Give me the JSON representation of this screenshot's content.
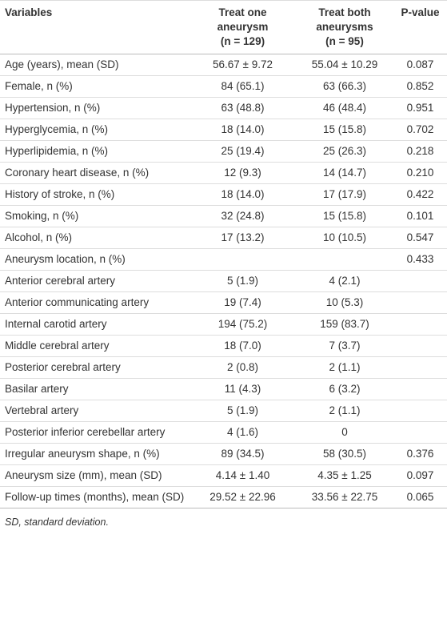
{
  "table": {
    "header": [
      [
        "Variables"
      ],
      [
        "Treat one",
        "aneurysm",
        "(n = 129)"
      ],
      [
        "Treat both",
        "aneurysms",
        "(n = 95)"
      ],
      [
        "P-value"
      ]
    ],
    "rows": [
      [
        "Age (years), mean (SD)",
        "56.67 ± 9.72",
        "55.04 ± 10.29",
        "0.087"
      ],
      [
        "Female, n (%)",
        "84 (65.1)",
        "63 (66.3)",
        "0.852"
      ],
      [
        "Hypertension, n (%)",
        "63 (48.8)",
        "46 (48.4)",
        "0.951"
      ],
      [
        "Hyperglycemia, n (%)",
        "18 (14.0)",
        "15 (15.8)",
        "0.702"
      ],
      [
        "Hyperlipidemia, n (%)",
        "25 (19.4)",
        "25 (26.3)",
        "0.218"
      ],
      [
        "Coronary heart disease, n (%)",
        "12 (9.3)",
        "14 (14.7)",
        "0.210"
      ],
      [
        "History of stroke, n (%)",
        "18 (14.0)",
        "17 (17.9)",
        "0.422"
      ],
      [
        "Smoking, n (%)",
        "32 (24.8)",
        "15 (15.8)",
        "0.101"
      ],
      [
        "Alcohol, n (%)",
        "17 (13.2)",
        "10 (10.5)",
        "0.547"
      ],
      [
        "Aneurysm location, n (%)",
        null,
        null,
        "0.433"
      ],
      [
        "Anterior cerebral artery",
        "5 (1.9)",
        "4 (2.1)",
        null
      ],
      [
        "Anterior communicating artery",
        "19 (7.4)",
        "10 (5.3)",
        null
      ],
      [
        "Internal carotid artery",
        "194 (75.2)",
        "159 (83.7)",
        null
      ],
      [
        "Middle cerebral artery",
        "18 (7.0)",
        "7 (3.7)",
        null
      ],
      [
        "Posterior cerebral artery",
        "2 (0.8)",
        "2 (1.1)",
        null
      ],
      [
        "Basilar artery",
        "11 (4.3)",
        "6 (3.2)",
        null
      ],
      [
        "Vertebral artery",
        "5 (1.9)",
        "2 (1.1)",
        null
      ],
      [
        "Posterior inferior cerebellar artery",
        "4 (1.6)",
        "0",
        null
      ],
      [
        "Irregular aneurysm shape, n (%)",
        "89 (34.5)",
        "58 (30.5)",
        "0.376"
      ],
      [
        "Aneurysm size (mm), mean (SD)",
        "4.14 ± 1.40",
        "4.35 ± 1.25",
        "0.097"
      ],
      [
        "Follow-up times (months), mean (SD)",
        "29.52 ± 22.96",
        "33.56 ± 22.75",
        "0.065"
      ]
    ],
    "footnote": "SD, standard deviation."
  }
}
